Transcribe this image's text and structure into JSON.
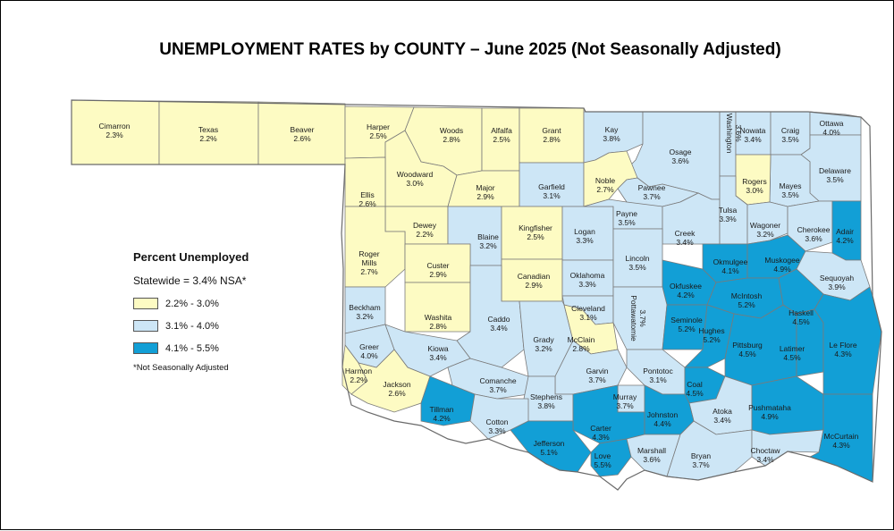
{
  "title": "UNEMPLOYMENT RATES by COUNTY – June 2025 (Not Seasonally Adjusted)",
  "colors": {
    "low": "#fdfbc3",
    "mid": "#cde6f6",
    "high": "#129fd6",
    "border": "#7a7a7a",
    "outline": "#6a6a6a"
  },
  "legend": {
    "title": "Percent Unemployed",
    "statewide": "Statewide = 3.4% NSA*",
    "bins": [
      {
        "label": "2.2% - 3.0%",
        "color": "#fdfbc3"
      },
      {
        "label": "3.1% - 4.0%",
        "color": "#cde6f6"
      },
      {
        "label": "4.1% - 5.5%",
        "color": "#129fd6"
      }
    ],
    "note": "*Not Seasonally Adjusted"
  },
  "counties": [
    {
      "name": "Cimarron",
      "rate": "2.3%",
      "bin": "low"
    },
    {
      "name": "Texas",
      "rate": "2.2%",
      "bin": "low"
    },
    {
      "name": "Beaver",
      "rate": "2.6%",
      "bin": "low"
    },
    {
      "name": "Harper",
      "rate": "2.5%",
      "bin": "low"
    },
    {
      "name": "Woods",
      "rate": "2.8%",
      "bin": "low"
    },
    {
      "name": "Alfalfa",
      "rate": "2.5%",
      "bin": "low"
    },
    {
      "name": "Grant",
      "rate": "2.8%",
      "bin": "low"
    },
    {
      "name": "Kay",
      "rate": "3.8%",
      "bin": "mid"
    },
    {
      "name": "Osage",
      "rate": "3.6%",
      "bin": "mid"
    },
    {
      "name": "Washington",
      "rate": "3.6%",
      "bin": "mid"
    },
    {
      "name": "Nowata",
      "rate": "3.4%",
      "bin": "mid"
    },
    {
      "name": "Craig",
      "rate": "3.5%",
      "bin": "mid"
    },
    {
      "name": "Ottawa",
      "rate": "4.0%",
      "bin": "mid"
    },
    {
      "name": "Delaware",
      "rate": "3.5%",
      "bin": "mid"
    },
    {
      "name": "Mayes",
      "rate": "3.5%",
      "bin": "mid"
    },
    {
      "name": "Rogers",
      "rate": "3.0%",
      "bin": "low"
    },
    {
      "name": "Woodward",
      "rate": "3.0%",
      "bin": "low"
    },
    {
      "name": "Major",
      "rate": "2.9%",
      "bin": "low"
    },
    {
      "name": "Garfield",
      "rate": "3.1%",
      "bin": "mid"
    },
    {
      "name": "Noble",
      "rate": "2.7%",
      "bin": "low"
    },
    {
      "name": "Pawnee",
      "rate": "3.7%",
      "bin": "mid"
    },
    {
      "name": "Ellis",
      "rate": "2.6%",
      "bin": "low"
    },
    {
      "name": "Dewey",
      "rate": "2.2%",
      "bin": "low"
    },
    {
      "name": "Blaine",
      "rate": "3.2%",
      "bin": "mid"
    },
    {
      "name": "Kingfisher",
      "rate": "2.5%",
      "bin": "low"
    },
    {
      "name": "Logan",
      "rate": "3.3%",
      "bin": "mid"
    },
    {
      "name": "Payne",
      "rate": "3.5%",
      "bin": "mid"
    },
    {
      "name": "Creek",
      "rate": "3.4%",
      "bin": "mid"
    },
    {
      "name": "Tulsa",
      "rate": "3.3%",
      "bin": "mid"
    },
    {
      "name": "Wagoner",
      "rate": "3.2%",
      "bin": "mid"
    },
    {
      "name": "Cherokee",
      "rate": "3.6%",
      "bin": "mid"
    },
    {
      "name": "Adair",
      "rate": "4.2%",
      "bin": "high"
    },
    {
      "name": "Roger Mills",
      "rate": "2.7%",
      "bin": "low"
    },
    {
      "name": "Custer",
      "rate": "2.9%",
      "bin": "low"
    },
    {
      "name": "Canadian",
      "rate": "2.9%",
      "bin": "low"
    },
    {
      "name": "Oklahoma",
      "rate": "3.3%",
      "bin": "mid"
    },
    {
      "name": "Lincoln",
      "rate": "3.5%",
      "bin": "mid"
    },
    {
      "name": "Okmulgee",
      "rate": "4.1%",
      "bin": "high"
    },
    {
      "name": "Muskogee",
      "rate": "4.9%",
      "bin": "high"
    },
    {
      "name": "Sequoyah",
      "rate": "3.9%",
      "bin": "mid"
    },
    {
      "name": "Okfuskee",
      "rate": "4.2%",
      "bin": "high"
    },
    {
      "name": "McIntosh",
      "rate": "5.2%",
      "bin": "high"
    },
    {
      "name": "Beckham",
      "rate": "3.2%",
      "bin": "mid"
    },
    {
      "name": "Washita",
      "rate": "2.8%",
      "bin": "low"
    },
    {
      "name": "Caddo",
      "rate": "3.4%",
      "bin": "mid"
    },
    {
      "name": "Cleveland",
      "rate": "3.1%",
      "bin": "mid"
    },
    {
      "name": "Pottawatomie",
      "rate": "3.7%",
      "bin": "mid"
    },
    {
      "name": "Seminole",
      "rate": "5.2%",
      "bin": "high"
    },
    {
      "name": "Hughes",
      "rate": "5.2%",
      "bin": "high"
    },
    {
      "name": "Haskell",
      "rate": "4.5%",
      "bin": "high"
    },
    {
      "name": "Greer",
      "rate": "4.0%",
      "bin": "mid"
    },
    {
      "name": "Kiowa",
      "rate": "3.4%",
      "bin": "mid"
    },
    {
      "name": "Grady",
      "rate": "3.2%",
      "bin": "mid"
    },
    {
      "name": "McClain",
      "rate": "2.8%",
      "bin": "low"
    },
    {
      "name": "Pittsburg",
      "rate": "4.5%",
      "bin": "high"
    },
    {
      "name": "Latimer",
      "rate": "4.5%",
      "bin": "high"
    },
    {
      "name": "Le Flore",
      "rate": "4.3%",
      "bin": "high"
    },
    {
      "name": "Harmon",
      "rate": "2.2%",
      "bin": "low"
    },
    {
      "name": "Jackson",
      "rate": "2.6%",
      "bin": "low"
    },
    {
      "name": "Comanche",
      "rate": "3.7%",
      "bin": "mid"
    },
    {
      "name": "Garvin",
      "rate": "3.7%",
      "bin": "mid"
    },
    {
      "name": "Pontotoc",
      "rate": "3.1%",
      "bin": "mid"
    },
    {
      "name": "Coal",
      "rate": "4.5%",
      "bin": "high"
    },
    {
      "name": "Tillman",
      "rate": "4.2%",
      "bin": "high"
    },
    {
      "name": "Stephens",
      "rate": "3.8%",
      "bin": "mid"
    },
    {
      "name": "Murray",
      "rate": "3.7%",
      "bin": "mid"
    },
    {
      "name": "Atoka",
      "rate": "3.4%",
      "bin": "mid"
    },
    {
      "name": "Pushmataha",
      "rate": "4.9%",
      "bin": "high"
    },
    {
      "name": "Cotton",
      "rate": "3.3%",
      "bin": "mid"
    },
    {
      "name": "Carter",
      "rate": "4.3%",
      "bin": "high"
    },
    {
      "name": "Johnston",
      "rate": "4.4%",
      "bin": "high"
    },
    {
      "name": "Jefferson",
      "rate": "5.1%",
      "bin": "high"
    },
    {
      "name": "Love",
      "rate": "5.5%",
      "bin": "high"
    },
    {
      "name": "Marshall",
      "rate": "3.6%",
      "bin": "mid"
    },
    {
      "name": "Bryan",
      "rate": "3.7%",
      "bin": "mid"
    },
    {
      "name": "Choctaw",
      "rate": "3.4%",
      "bin": "mid"
    },
    {
      "name": "McCurtain",
      "rate": "4.3%",
      "bin": "high"
    }
  ]
}
